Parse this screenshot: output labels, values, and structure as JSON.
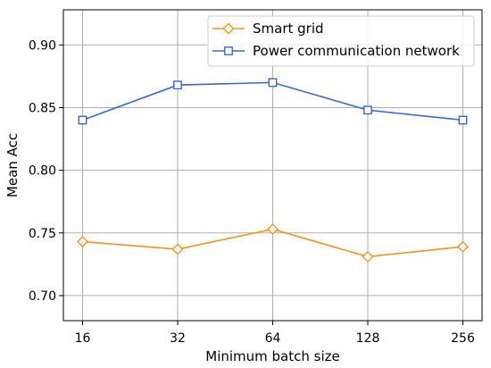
{
  "chart_data": {
    "type": "line",
    "x": [
      "16",
      "32",
      "64",
      "128",
      "256"
    ],
    "xlabel": "Minimum batch size",
    "ylabel": "Mean Acc",
    "ylim": [
      0.68,
      0.928
    ],
    "yticks": [
      "0.70",
      "0.75",
      "0.80",
      "0.85",
      "0.90"
    ],
    "grid": true,
    "legend": "top-right",
    "series": [
      {
        "name": "Smart grid",
        "values": [
          0.743,
          0.737,
          0.753,
          0.731,
          0.739
        ],
        "color": "#f5921e",
        "marker": "diamond"
      },
      {
        "name": "Power communication network",
        "values": [
          0.84,
          0.868,
          0.87,
          0.848,
          0.84
        ],
        "color": "#3a66d6",
        "marker": "square"
      }
    ]
  }
}
